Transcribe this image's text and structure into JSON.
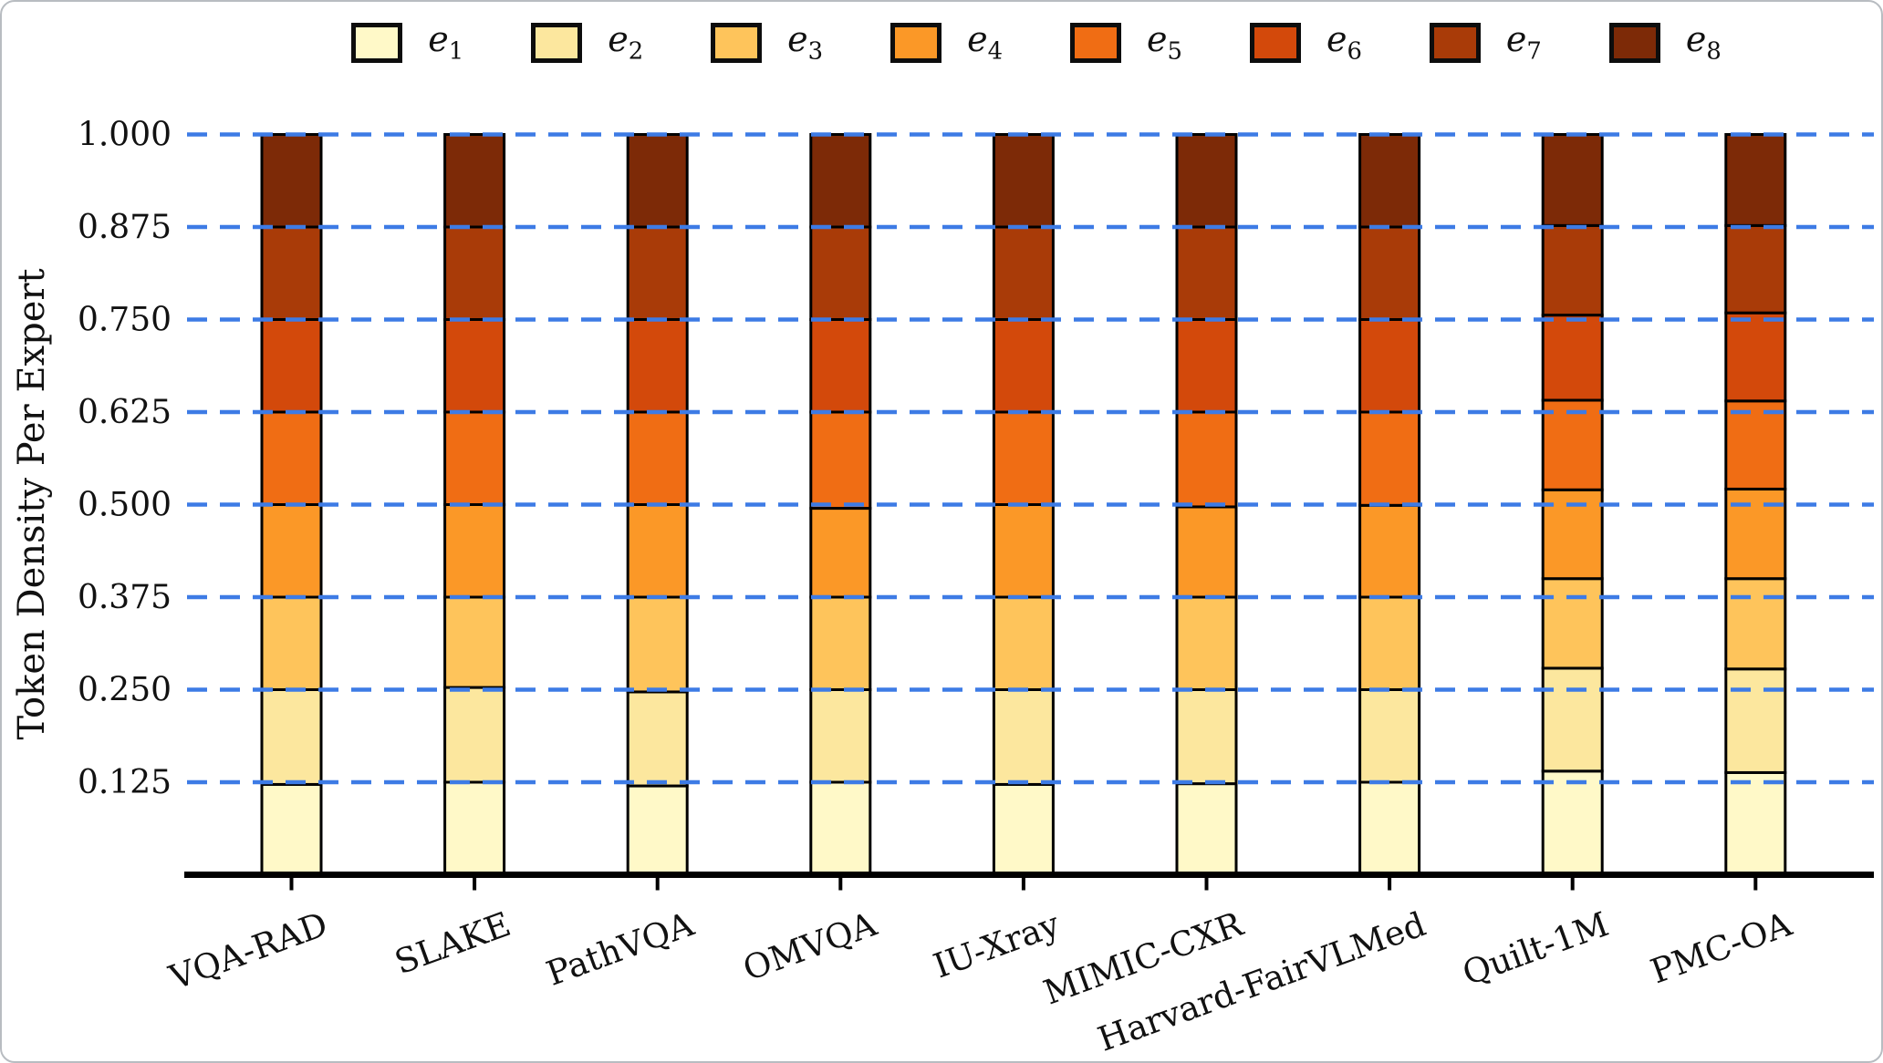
{
  "chart_data": {
    "type": "bar",
    "stacked": true,
    "title": "",
    "xlabel": "",
    "ylabel": "Token Density Per Expert",
    "ylim": [
      0,
      1
    ],
    "grid": "dashed horizontal",
    "gridline_color": "#3d7be5",
    "bar_outline_color": "#000000",
    "legend_position": "top",
    "categories": [
      "VQA-RAD",
      "SLAKE",
      "PathVQA",
      "OMVQA",
      "IU-Xray",
      "MIMIC-CXR",
      "Harvard-FairVLMed",
      "Quilt-1M",
      "PMC-OA"
    ],
    "yticks": [
      {
        "value": 0.125,
        "label": "0.125"
      },
      {
        "value": 0.25,
        "label": "0.250"
      },
      {
        "value": 0.375,
        "label": "0.375"
      },
      {
        "value": 0.5,
        "label": "0.500"
      },
      {
        "value": 0.625,
        "label": "0.625"
      },
      {
        "value": 0.75,
        "label": "0.750"
      },
      {
        "value": 0.875,
        "label": "0.875"
      },
      {
        "value": 1.0,
        "label": "1.000"
      }
    ],
    "series": [
      {
        "name": "e1",
        "base": "e",
        "sub": "1",
        "color": "#FFF9C8",
        "values": [
          0.122,
          0.125,
          0.12,
          0.125,
          0.122,
          0.123,
          0.125,
          0.14,
          0.138
        ]
      },
      {
        "name": "e2",
        "base": "e",
        "sub": "2",
        "color": "#FCE79E",
        "values": [
          0.128,
          0.128,
          0.127,
          0.125,
          0.128,
          0.127,
          0.125,
          0.139,
          0.14
        ]
      },
      {
        "name": "e3",
        "base": "e",
        "sub": "3",
        "color": "#FEC45B",
        "values": [
          0.125,
          0.122,
          0.128,
          0.125,
          0.125,
          0.125,
          0.125,
          0.121,
          0.122
        ]
      },
      {
        "name": "e4",
        "base": "e",
        "sub": "4",
        "color": "#FB9827",
        "values": [
          0.125,
          0.125,
          0.125,
          0.12,
          0.125,
          0.122,
          0.124,
          0.12,
          0.121
        ]
      },
      {
        "name": "e5",
        "base": "e",
        "sub": "5",
        "color": "#F06D14",
        "values": [
          0.125,
          0.125,
          0.125,
          0.13,
          0.125,
          0.128,
          0.126,
          0.121,
          0.119
        ]
      },
      {
        "name": "e6",
        "base": "e",
        "sub": "6",
        "color": "#D3490B",
        "values": [
          0.125,
          0.125,
          0.125,
          0.125,
          0.125,
          0.125,
          0.125,
          0.115,
          0.119
        ]
      },
      {
        "name": "e7",
        "base": "e",
        "sub": "7",
        "color": "#A93B08",
        "values": [
          0.125,
          0.125,
          0.125,
          0.125,
          0.125,
          0.125,
          0.125,
          0.121,
          0.118
        ]
      },
      {
        "name": "e8",
        "base": "e",
        "sub": "8",
        "color": "#7D2A07",
        "values": [
          0.125,
          0.125,
          0.125,
          0.125,
          0.125,
          0.125,
          0.125,
          0.123,
          0.123
        ]
      }
    ]
  }
}
